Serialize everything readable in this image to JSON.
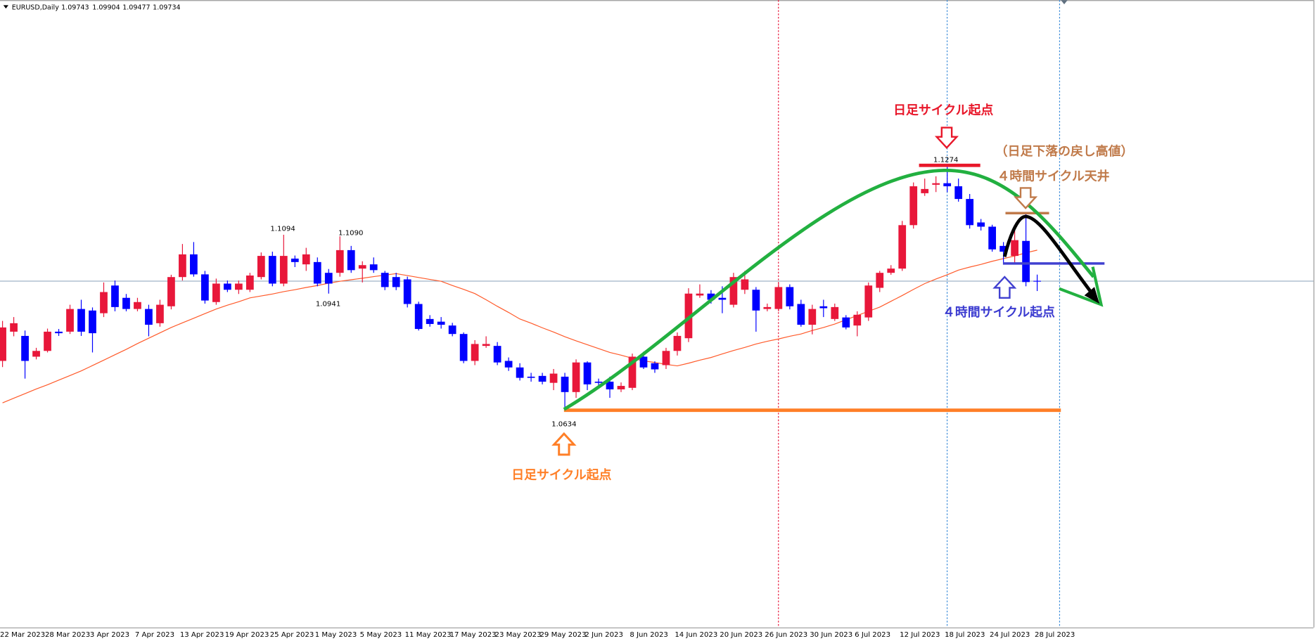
{
  "chart_data": {
    "type": "candlestick",
    "title": "EURUSD,Daily",
    "categories": [
      "22 Mar 2023",
      null,
      null,
      null,
      "28 Mar 2023",
      null,
      null,
      null,
      "3 Apr 2023",
      null,
      null,
      null,
      "7 Apr 2023",
      null,
      null,
      null,
      "13 Apr 2023",
      null,
      null,
      null,
      "19 Apr 2023",
      null,
      null,
      null,
      "25 Apr 2023",
      null,
      null,
      null,
      "1 May 2023",
      null,
      null,
      null,
      "5 May 2023",
      null,
      null,
      null,
      "11 May 2023",
      null,
      null,
      null,
      "17 May 2023",
      null,
      null,
      null,
      "23 May 2023",
      null,
      null,
      null,
      "29 May 2023",
      null,
      null,
      null,
      "2 Jun 2023",
      null,
      null,
      null,
      "8 Jun 2023",
      null,
      null,
      null,
      "14 Jun 2023",
      null,
      null,
      null,
      "20 Jun 2023",
      null,
      null,
      null,
      "26 Jun 2023",
      null,
      null,
      null,
      "30 Jun 2023",
      null,
      null,
      null,
      "6 Jul 2023",
      null,
      null,
      null,
      "12 Jul 2023",
      null,
      null,
      null,
      "18 Jul 2023",
      null,
      null,
      null,
      "24 Jul 2023",
      null,
      null,
      null,
      "28 Jul 2023"
    ],
    "open": [
      1.0766,
      1.0842,
      1.0831,
      1.0777,
      1.0792,
      1.0842,
      1.0842,
      1.0901,
      1.0897,
      1.089,
      1.0962,
      1.093,
      1.0901,
      1.0901,
      1.0864,
      1.0908,
      1.0984,
      1.1043,
      1.0991,
      1.0919,
      1.0967,
      1.0951,
      1.0951,
      1.0984,
      1.1039,
      1.0967,
      1.1032,
      1.1017,
      1.1023,
      1.0995,
      1.0995,
      1.1054,
      1.1006,
      1.1017,
      1.0995,
      1.0984,
      1.0978,
      1.0914,
      1.0875,
      1.0868,
      1.0858,
      1.0836,
      1.0766,
      1.0805,
      1.0805,
      1.0766,
      1.0749,
      1.0725,
      1.0727,
      1.0709,
      1.0725,
      1.0685,
      1.0762,
      1.0712,
      1.0712,
      1.0692,
      1.0696,
      1.0777,
      1.076,
      1.0755,
      1.0792,
      1.0825,
      1.0936,
      1.0941,
      1.093,
      1.0912,
      1.0951,
      1.0951,
      1.0901,
      1.0901,
      1.0958,
      1.0914,
      1.086,
      1.0908,
      1.0875,
      1.0879,
      1.0858,
      1.0879,
      1.0956,
      1.0995,
      1.1006,
      1.1119,
      1.1202,
      1.1224,
      1.1228,
      1.122,
      1.1187,
      1.1126,
      1.1115,
      1.1065,
      1.1039,
      1.1078,
      1.09743
    ],
    "high": [
      1.087,
      1.088,
      1.0845,
      1.08,
      1.085,
      1.0849,
      1.0912,
      1.0925,
      1.0905,
      1.097,
      1.0975,
      1.094,
      1.093,
      1.0912,
      1.0925,
      1.099,
      1.107,
      1.1075,
      1.1,
      1.098,
      1.0975,
      1.0975,
      1.0995,
      1.1048,
      1.105,
      1.1094,
      1.104,
      1.106,
      1.1035,
      1.1005,
      1.109,
      1.1065,
      1.1025,
      1.1035,
      1.1,
      1.0995,
      1.0985,
      1.092,
      1.0885,
      1.088,
      1.0865,
      1.084,
      1.082,
      1.083,
      1.0815,
      1.0775,
      1.076,
      1.0735,
      1.0735,
      1.0745,
      1.0735,
      1.077,
      1.0765,
      1.072,
      1.0725,
      1.071,
      1.0785,
      1.079,
      1.0765,
      1.08,
      1.084,
      1.0955,
      1.0965,
      1.095,
      1.096,
      1.0995,
      1.1,
      1.0958,
      1.0915,
      1.097,
      1.0965,
      1.0925,
      1.0912,
      1.0925,
      1.0915,
      1.0885,
      1.0895,
      1.097,
      1.1,
      1.1015,
      1.113,
      1.123,
      1.124,
      1.1246,
      1.1274,
      1.124,
      1.12,
      1.1135,
      1.112,
      1.1075,
      1.111,
      1.1149,
      1.09904
    ],
    "low": [
      1.075,
      1.083,
      1.072,
      1.077,
      1.0788,
      1.0831,
      1.0836,
      1.0831,
      1.0788,
      1.088,
      1.0895,
      1.0895,
      1.0895,
      1.083,
      1.0855,
      1.09,
      1.0975,
      1.0985,
      1.0915,
      1.0912,
      1.0945,
      1.094,
      1.0945,
      1.0978,
      1.096,
      1.096,
      1.101,
      1.1,
      1.096,
      1.0941,
      1.0985,
      1.0995,
      1.097,
      1.0995,
      1.095,
      1.095,
      1.0905,
      1.0845,
      1.0855,
      1.085,
      1.083,
      1.076,
      1.0755,
      1.08,
      1.0755,
      1.074,
      1.0715,
      1.0712,
      1.0705,
      1.069,
      1.0634,
      1.067,
      1.069,
      1.0695,
      1.067,
      1.0685,
      1.069,
      1.0745,
      1.0735,
      1.0745,
      1.078,
      1.0815,
      1.093,
      1.0915,
      1.089,
      1.0905,
      1.094,
      1.0842,
      1.0895,
      1.0895,
      1.09,
      1.0855,
      1.0835,
      1.088,
      1.087,
      1.0848,
      1.083,
      1.087,
      1.0945,
      1.099,
      1.1,
      1.111,
      1.1195,
      1.1205,
      1.1205,
      1.118,
      1.111,
      1.1105,
      1.105,
      1.102,
      1.102,
      1.096,
      1.09477
    ],
    "close": [
      1.0853,
      1.0864,
      1.0766,
      1.0792,
      1.0842,
      1.0838,
      1.0901,
      1.0842,
      1.0838,
      1.0945,
      1.0906,
      1.0901,
      1.0919,
      1.086,
      1.0912,
      1.0984,
      1.1043,
      1.0991,
      1.0923,
      1.0967,
      1.0951,
      1.0967,
      1.0988,
      1.1039,
      1.0967,
      1.1039,
      1.1023,
      1.1043,
      1.0967,
      1.0967,
      1.1054,
      1.1002,
      1.1015,
      1.1002,
      1.0958,
      1.0958,
      1.0914,
      1.0849,
      1.0862,
      1.086,
      1.0836,
      1.0766,
      1.081,
      1.081,
      1.0762,
      1.0749,
      1.0722,
      1.0722,
      1.0712,
      1.0733,
      1.0685,
      1.0762,
      1.0705,
      1.0709,
      1.0692,
      1.0701,
      1.0777,
      1.0749,
      1.0744,
      1.0792,
      1.0831,
      1.0941,
      1.0941,
      1.0925,
      1.0925,
      1.0984,
      1.0978,
      1.0897,
      1.0906,
      1.0958,
      1.0908,
      1.086,
      1.0901,
      1.0903,
      1.0906,
      1.0853,
      1.0886,
      1.0962,
      1.0995,
      1.1006,
      1.1119,
      1.122,
      1.1213,
      1.1228,
      1.122,
      1.1187,
      1.1119,
      1.1115,
      1.1056,
      1.105,
      1.108,
      1.0971,
      1.09734
    ],
    "ma": [
      1.0657,
      1.0669,
      1.0681,
      1.0693,
      1.0704,
      1.0716,
      1.0728,
      1.074,
      1.0754,
      1.0768,
      1.0782,
      1.0796,
      1.0811,
      1.0825,
      1.0839,
      1.0853,
      1.0865,
      1.0877,
      1.0889,
      1.0901,
      1.0911,
      1.092,
      1.093,
      1.0935,
      1.094,
      1.0946,
      1.0951,
      1.0957,
      1.0962,
      1.0968,
      1.0973,
      1.0977,
      1.0981,
      1.0985,
      1.0989,
      1.0993,
      1.0988,
      1.0983,
      1.0978,
      1.0973,
      1.0962,
      1.0952,
      1.0941,
      1.0925,
      1.0908,
      1.0892,
      1.0875,
      1.0864,
      1.0852,
      1.0841,
      1.0829,
      1.0818,
      1.0808,
      1.0798,
      1.0788,
      1.0781,
      1.0773,
      1.0766,
      1.0762,
      1.0757,
      1.0753,
      1.076,
      1.0768,
      1.0775,
      1.0784,
      1.0793,
      1.0801,
      1.081,
      1.0817,
      1.0823,
      1.083,
      1.0836,
      1.0845,
      1.0853,
      1.0862,
      1.0873,
      1.0884,
      1.0895,
      1.0906,
      1.0921,
      1.0936,
      1.0952,
      1.0967,
      1.0979,
      1.099,
      1.1002,
      1.101,
      1.1017,
      1.1025,
      1.1032,
      1.1039,
      1.1047,
      1.1054
    ],
    "ylim": [
      1.0073,
      1.1704
    ],
    "up_color": "#e8173a",
    "down_color": "#0000ff",
    "ma_color": "#ff5a2a",
    "price_labels": [
      "1.1094",
      "1.1090",
      "1.0941",
      "1.0634",
      "1.1274"
    ],
    "notes": [
      "日足サイクル起点",
      "日足サイクル起点",
      "（日足下落の戻し高値）",
      "４時間サイクル天井",
      "４時間サイクル起点"
    ]
  }
}
